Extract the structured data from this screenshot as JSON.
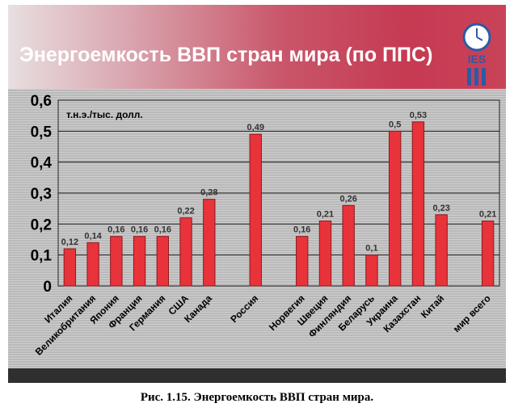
{
  "title": "Энергоемкость ВВП стран мира (по ППС)",
  "logo_text": "IES",
  "caption": "Рис. 1.15. Энергоемкость ВВП стран мира.",
  "colors": {
    "bar": "#e8333b",
    "bar_edge": "#8b1a1f",
    "banner": "#c63a52"
  },
  "chart_data": {
    "type": "bar",
    "unit_label": "т.н.э./тыс. долл.",
    "categories": [
      "Италия",
      "Великобритания",
      "Япония",
      "Франция",
      "Германия",
      "США",
      "Канада",
      "",
      "Россия",
      "",
      "Норвегия",
      "Швеция",
      "Финляндия",
      "Беларусь",
      "Украина",
      "Казахстан",
      "Китай",
      "",
      "мир всего"
    ],
    "values": [
      0.12,
      0.14,
      0.16,
      0.16,
      0.16,
      0.22,
      0.28,
      null,
      0.49,
      null,
      0.16,
      0.21,
      0.26,
      0.1,
      0.5,
      0.53,
      0.23,
      null,
      0.21
    ],
    "data_labels": [
      "0,12",
      "0,14",
      "0,16",
      "0,16",
      "0,16",
      "0,22",
      "0,28",
      "",
      "0,49",
      "",
      "0,16",
      "0,21",
      "0,26",
      "0,1",
      "0,5",
      "0,53",
      "0,23",
      "",
      "0,21"
    ],
    "yticks": [
      "0",
      "0,1",
      "0,2",
      "0,3",
      "0,4",
      "0,5",
      "0,6"
    ],
    "ylim": [
      0,
      0.6
    ],
    "grid": true
  }
}
